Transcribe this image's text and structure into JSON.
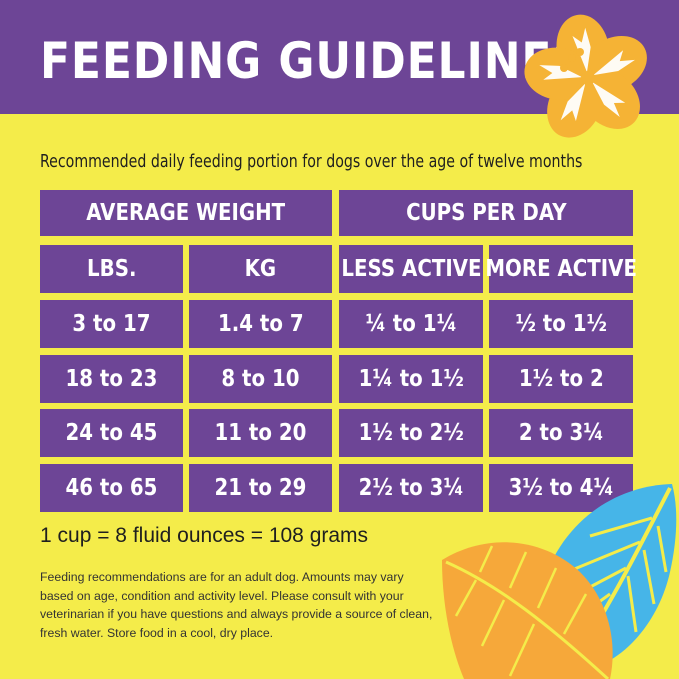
{
  "title": "FEEDING GUIDELINES",
  "subtitle": "Recommended daily feeding portion for dogs over the age of twelve months",
  "table": {
    "group_headers": [
      "AVERAGE WEIGHT",
      "CUPS PER DAY"
    ],
    "columns": [
      "LBS.",
      "KG",
      "LESS ACTIVE",
      "MORE ACTIVE"
    ],
    "rows": [
      [
        "3 to 17",
        "1.4 to 7",
        "¼ to 1¼",
        "½ to 1½"
      ],
      [
        "18 to 23",
        "8 to 10",
        "1¼ to 1½",
        "1½ to 2"
      ],
      [
        "24 to 45",
        "11 to 20",
        "1½ to 2½",
        "2 to 3¼"
      ],
      [
        "46 to 65",
        "21 to 29",
        "2½ to 3¼",
        "3½ to 4¼"
      ]
    ]
  },
  "conversion": "1 cup = 8 fluid ounces = 108 grams",
  "note": "Feeding recommendations are for an adult dog.  Amounts may vary based on age, condition and activity level.  Please consult with your veterinarian if you have questions and always provide a source of clean, fresh water.  Store food in a cool, dry place.",
  "colors": {
    "background": "#f4ec4a",
    "purple": "#6d4596",
    "flower": "#f5b335",
    "leaf_orange": "#f6a83a",
    "leaf_blue": "#46b5e8"
  },
  "decorations": [
    "hibiscus-flower",
    "orange-leaf",
    "blue-leaf"
  ]
}
